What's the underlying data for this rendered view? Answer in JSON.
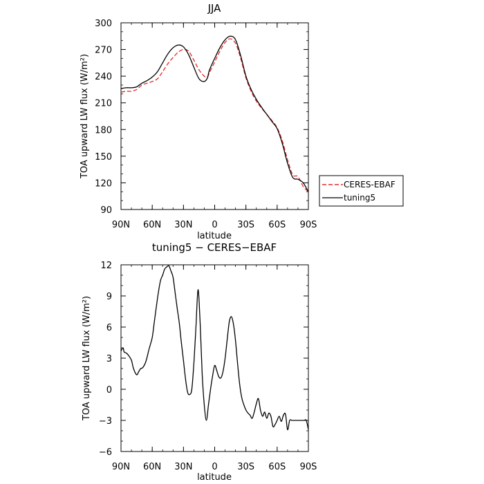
{
  "chart_data": [
    {
      "type": "line",
      "title": "JJA",
      "xlabel": "latitude",
      "ylabel": "TOA upward LW flux (W/m²)",
      "xlim": [
        -90,
        90
      ],
      "ylim": [
        90,
        300
      ],
      "xticks": [
        -90,
        -60,
        -30,
        0,
        30,
        60,
        90
      ],
      "xticklabels": [
        "90N",
        "60N",
        "30N",
        "0",
        "30S",
        "60S",
        "90S"
      ],
      "yticks": [
        90,
        120,
        150,
        180,
        210,
        240,
        270,
        300
      ],
      "yticklabels": [
        "90",
        "120",
        "150",
        "180",
        "210",
        "240",
        "270",
        "300"
      ],
      "grid": false,
      "legend_position": "outside-right",
      "series": [
        {
          "name": "CERES-EBAF",
          "color": "#e8262a",
          "dash": "6,3",
          "x": [
            -90,
            -85,
            -80,
            -75,
            -70,
            -65,
            -60,
            -55,
            -50,
            -45,
            -40,
            -35,
            -30,
            -25,
            -20,
            -15,
            -10,
            -7,
            -5,
            0,
            5,
            10,
            15,
            20,
            25,
            30,
            35,
            40,
            45,
            50,
            55,
            60,
            65,
            70,
            75,
            80,
            85,
            90
          ],
          "y": [
            222,
            223,
            223,
            225,
            230,
            232,
            234,
            237,
            245,
            254,
            261,
            267,
            270,
            268,
            258,
            247,
            240,
            239,
            244,
            256,
            268,
            278,
            282,
            277,
            260,
            238,
            223,
            212,
            204,
            197,
            190,
            182,
            167,
            146,
            129,
            127,
            116,
            110
          ]
        },
        {
          "name": "tuning5",
          "color": "#000000",
          "dash": "",
          "x": [
            -90,
            -85,
            -80,
            -75,
            -70,
            -65,
            -60,
            -55,
            -50,
            -45,
            -40,
            -35,
            -30,
            -25,
            -20,
            -15,
            -10,
            -7,
            -5,
            0,
            5,
            10,
            15,
            20,
            25,
            30,
            35,
            40,
            45,
            50,
            55,
            60,
            65,
            70,
            75,
            80,
            85,
            90
          ],
          "y": [
            226,
            227,
            227,
            228,
            232,
            235,
            239,
            245,
            255,
            265,
            272,
            275,
            273,
            264,
            250,
            237,
            234,
            238,
            247,
            260,
            272,
            281,
            285,
            281,
            263,
            240,
            225,
            214,
            205,
            197,
            189,
            181,
            164,
            142,
            126,
            124,
            120,
            110
          ]
        }
      ]
    },
    {
      "type": "line",
      "title": "tuning5 − CERES−EBAF",
      "xlabel": "latitude",
      "ylabel": "TOA upward LW flux (W/m²)",
      "xlim": [
        -90,
        90
      ],
      "ylim": [
        -6,
        12
      ],
      "xticks": [
        -90,
        -60,
        -30,
        0,
        30,
        60,
        90
      ],
      "xticklabels": [
        "90N",
        "60N",
        "30N",
        "0",
        "30S",
        "60S",
        "90S"
      ],
      "yticks": [
        -6,
        -3,
        0,
        3,
        6,
        9,
        12
      ],
      "yticklabels": [
        "−6",
        "−3",
        "0",
        "3",
        "6",
        "9",
        "12"
      ],
      "grid": false,
      "series": [
        {
          "color": "#000000",
          "x": [
            -90,
            -88,
            -87,
            -85,
            -83,
            -80,
            -78,
            -75,
            -73,
            -71,
            -69,
            -66,
            -63,
            -60,
            -58,
            -56,
            -54,
            -52,
            -50,
            -48,
            -46,
            -44,
            -42,
            -40,
            -38,
            -36,
            -34,
            -32,
            -30,
            -28,
            -26,
            -24,
            -22,
            -20,
            -18,
            -16,
            -14,
            -12,
            -10,
            -8,
            -6,
            -4,
            -2,
            0,
            2,
            4,
            6,
            8,
            10,
            12,
            14,
            16,
            18,
            20,
            22,
            24,
            26,
            28,
            30,
            32,
            34,
            36,
            38,
            40,
            42,
            44,
            46,
            48,
            50,
            52,
            54,
            56,
            58,
            60,
            62,
            64,
            66,
            68,
            70,
            72,
            74,
            76,
            78,
            80,
            82,
            84,
            86,
            88,
            90
          ],
          "y": [
            3.7,
            4.0,
            3.6,
            3.5,
            3.3,
            2.8,
            2.0,
            1.4,
            1.7,
            2.0,
            2.1,
            2.7,
            3.9,
            5.0,
            6.5,
            8.0,
            9.4,
            10.5,
            11.0,
            11.6,
            11.8,
            11.9,
            11.4,
            10.8,
            9.3,
            7.8,
            6.4,
            4.5,
            2.8,
            1.0,
            -0.3,
            -0.5,
            0.0,
            2.5,
            6.0,
            9.6,
            6.5,
            1.5,
            -1.5,
            -3.0,
            -1.5,
            0.0,
            1.3,
            2.3,
            1.8,
            1.2,
            1.1,
            1.7,
            3.0,
            4.8,
            6.5,
            7.0,
            6.3,
            4.7,
            2.5,
            0.5,
            -0.8,
            -1.5,
            -2.0,
            -2.3,
            -2.5,
            -2.8,
            -2.2,
            -1.4,
            -0.9,
            -2.0,
            -2.6,
            -2.2,
            -2.8,
            -2.3,
            -2.6,
            -3.6,
            -3.4,
            -3.0,
            -2.6,
            -3.1,
            -2.5,
            -2.4,
            -3.9,
            -3.0,
            -3.0,
            -3.0,
            -3.0,
            -3.0,
            -3.0,
            -3.0,
            -3.0,
            -3.0,
            -3.9
          ]
        }
      ]
    }
  ]
}
